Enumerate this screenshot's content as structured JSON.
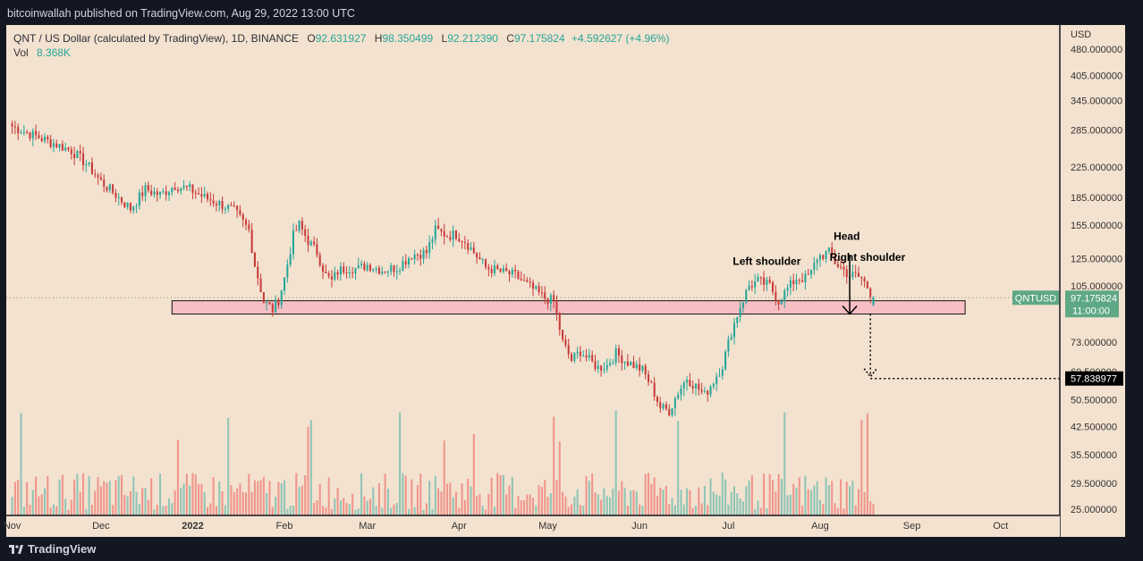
{
  "header": {
    "published_by": "bitcoinwallah published on TradingView.com, Aug 29, 2022 13:00 UTC"
  },
  "legend": {
    "symbol": "QNT / US Dollar (calculated by TradingView), 1D, BINANCE",
    "o_key": "O",
    "o_val": "92.631927",
    "h_key": "H",
    "h_val": "98.350499",
    "l_key": "L",
    "l_val": "92.212390",
    "c_key": "C",
    "c_val": "97.175824",
    "change": "+4.592627 (+4.96%)",
    "vol_label": "Vol",
    "vol_val": "8.368K"
  },
  "footer": {
    "brand": "TradingView"
  },
  "colors": {
    "background": "#f3e2cf",
    "up": "#26a69a",
    "down": "#c83a3a",
    "vol_up": "#8fc5b6",
    "vol_down": "#f0958c",
    "zone_fill": "#f7b8c2",
    "price_tag": "#5fa886",
    "frame": "#131722"
  },
  "chart_data": {
    "type": "candlestick",
    "symbol": "QNTUSD",
    "interval": "1D",
    "y_scale": "log",
    "y_unit": "USD",
    "ylim": [
      24,
      560
    ],
    "y_ticks": [
      480,
      405,
      345,
      285,
      225,
      185,
      155,
      125,
      105,
      73,
      60.5,
      50.5,
      42.5,
      35.5,
      29.5,
      25
    ],
    "y_tick_labels": [
      "480.000000",
      "405.000000",
      "345.000000",
      "285.000000",
      "225.000000",
      "185.000000",
      "155.000000",
      "125.000000",
      "105.000000",
      "73.000000",
      "60.500000",
      "50.500000",
      "42.500000",
      "35.500000",
      "29.500000",
      "25.000000"
    ],
    "x_ticks": [
      {
        "label": "Nov",
        "day": 0
      },
      {
        "label": "Dec",
        "day": 30
      },
      {
        "label": "2022",
        "day": 61
      },
      {
        "label": "Feb",
        "day": 92
      },
      {
        "label": "Mar",
        "day": 120
      },
      {
        "label": "Apr",
        "day": 151
      },
      {
        "label": "May",
        "day": 181
      },
      {
        "label": "Jun",
        "day": 212
      },
      {
        "label": "Jul",
        "day": 242
      },
      {
        "label": "Aug",
        "day": 273
      },
      {
        "label": "Sep",
        "day": 304
      },
      {
        "label": "Oct",
        "day": 334
      }
    ],
    "x_range_days": [
      -2,
      354
    ],
    "x_note": "day index = days since Nov 1 2021",
    "close_anchors": [
      [
        0,
        292
      ],
      [
        10,
        270
      ],
      [
        20,
        250
      ],
      [
        25,
        230
      ],
      [
        30,
        205
      ],
      [
        35,
        188
      ],
      [
        40,
        172
      ],
      [
        45,
        195
      ],
      [
        50,
        188
      ],
      [
        55,
        200
      ],
      [
        60,
        195
      ],
      [
        65,
        185
      ],
      [
        70,
        178
      ],
      [
        75,
        170
      ],
      [
        80,
        150
      ],
      [
        82,
        120
      ],
      [
        85,
        95
      ],
      [
        88,
        90
      ],
      [
        90,
        96
      ],
      [
        92,
        110
      ],
      [
        95,
        145
      ],
      [
        97,
        155
      ],
      [
        100,
        140
      ],
      [
        103,
        130
      ],
      [
        106,
        112
      ],
      [
        108,
        108
      ],
      [
        110,
        115
      ],
      [
        113,
        118
      ],
      [
        117,
        117
      ],
      [
        120,
        120
      ],
      [
        125,
        116
      ],
      [
        130,
        118
      ],
      [
        135,
        128
      ],
      [
        140,
        130
      ],
      [
        143,
        150
      ],
      [
        147,
        145
      ],
      [
        150,
        146
      ],
      [
        153,
        140
      ],
      [
        156,
        130
      ],
      [
        160,
        118
      ],
      [
        165,
        115
      ],
      [
        170,
        112
      ],
      [
        175,
        104
      ],
      [
        180,
        97
      ],
      [
        183,
        95
      ],
      [
        186,
        73
      ],
      [
        189,
        65
      ],
      [
        192,
        69
      ],
      [
        195,
        65
      ],
      [
        198,
        62
      ],
      [
        201,
        63
      ],
      [
        204,
        68
      ],
      [
        207,
        65
      ],
      [
        210,
        63
      ],
      [
        213,
        61
      ],
      [
        216,
        55
      ],
      [
        219,
        48
      ],
      [
        222,
        47
      ],
      [
        225,
        53
      ],
      [
        228,
        58
      ],
      [
        231,
        55
      ],
      [
        234,
        52
      ],
      [
        237,
        57
      ],
      [
        240,
        63
      ],
      [
        243,
        78
      ],
      [
        246,
        92
      ],
      [
        249,
        105
      ],
      [
        252,
        108
      ],
      [
        256,
        105
      ],
      [
        259,
        95
      ],
      [
        262,
        103
      ],
      [
        265,
        110
      ],
      [
        268,
        110
      ],
      [
        270,
        114
      ],
      [
        272,
        126
      ],
      [
        276,
        130
      ],
      [
        278,
        122
      ],
      [
        281,
        116
      ],
      [
        283,
        112
      ],
      [
        285,
        112
      ],
      [
        287,
        110
      ],
      [
        289,
        104
      ],
      [
        291,
        97
      ]
    ],
    "last": {
      "open": 92.631927,
      "high": 98.350499,
      "low": 92.21239,
      "close": 97.175824,
      "change": 4.592627,
      "change_pct": 4.96
    },
    "volume": {
      "last": "8.368K"
    },
    "price_labels": [
      {
        "text": "QNTUSD",
        "kind": "symbol"
      },
      {
        "text": "97.175824",
        "kind": "last_price"
      },
      {
        "text": "11:00:00",
        "kind": "countdown"
      },
      {
        "text": "57.838977",
        "kind": "target"
      }
    ],
    "support_zone": {
      "day_start": 54,
      "day_end": 322,
      "price_low": 87.5,
      "price_high": 95.3
    },
    "target_level": {
      "price": 57.838977,
      "day_start": 290,
      "day_end": 356
    },
    "measured_move": {
      "day": 283,
      "from": 128,
      "to": 87.5
    },
    "annotations": [
      {
        "text": "Head",
        "day": 282,
        "price": 141
      },
      {
        "text": "Left shoulder",
        "day": 255,
        "price": 120
      },
      {
        "text": "Right shoulder",
        "day": 289,
        "price": 123
      }
    ],
    "axis_label": "USD",
    "grid": false
  }
}
